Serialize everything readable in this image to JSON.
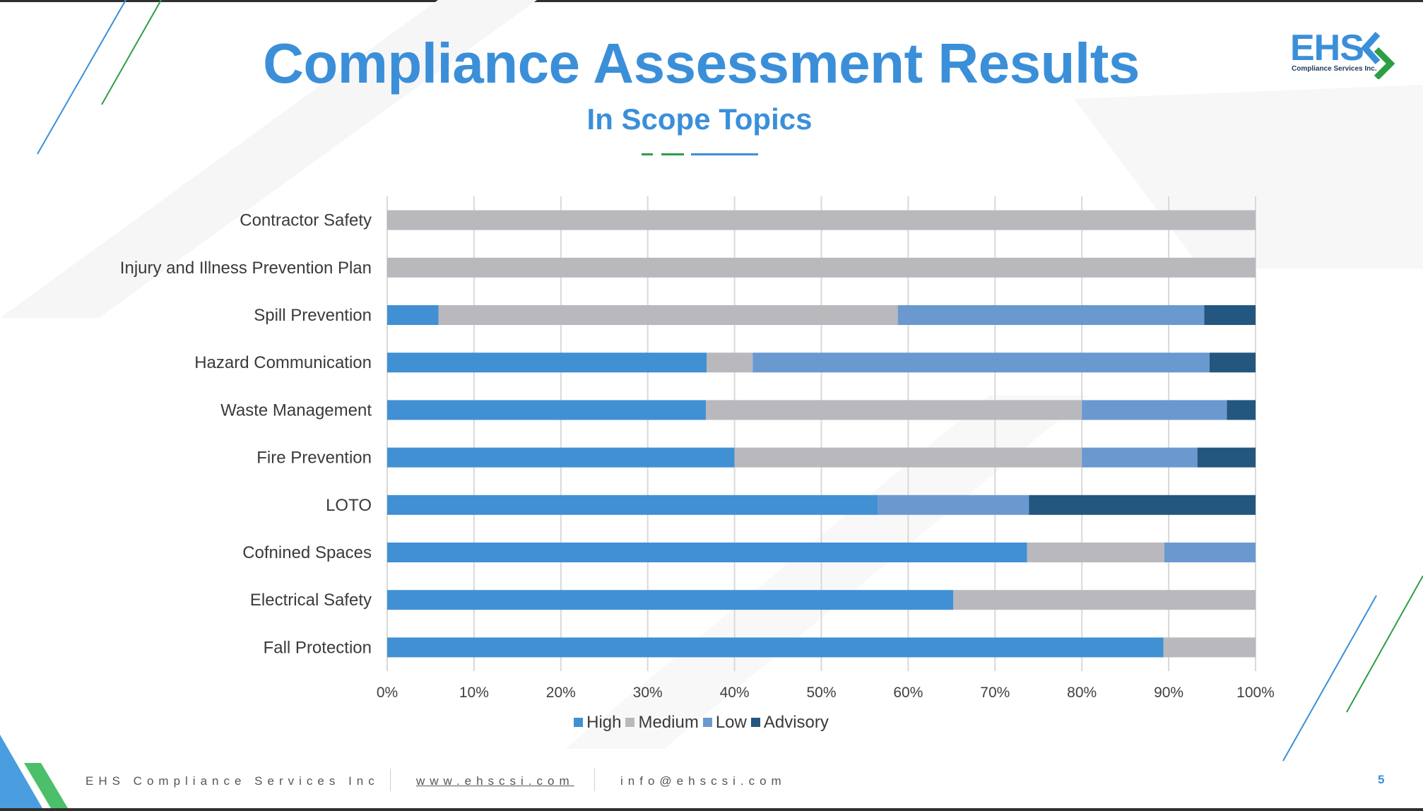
{
  "slide": {
    "title": "Compliance Assessment Results",
    "subtitle": "In Scope Topics",
    "page_number": "5"
  },
  "logo": {
    "text": "EHS",
    "subtext": "Compliance Services Inc."
  },
  "footer": {
    "company": "EHS Compliance Services Inc",
    "website": "www.ehscsi.com",
    "email": "info@ehscsi.com"
  },
  "colors": {
    "accent_blue": "#3b8fd9",
    "accent_green": "#2e9e44"
  },
  "chart_data": {
    "type": "bar",
    "orientation": "horizontal",
    "stacked": "percent",
    "categories": [
      "Contractor Safety",
      "Injury and Illness Prevention Plan",
      "Spill Prevention",
      "Hazard Communication",
      "Waste Management",
      "Fire Prevention",
      "LOTO",
      "Cofnined Spaces",
      "Electrical Safety",
      "Fall Protection"
    ],
    "series": [
      {
        "name": "High",
        "color": "#4190d4",
        "values": [
          0,
          0,
          5.9,
          36.8,
          36.7,
          40.0,
          56.5,
          73.7,
          65.2,
          89.4
        ]
      },
      {
        "name": "Medium",
        "color": "#b8b8bd",
        "values": [
          100,
          100,
          52.9,
          5.3,
          43.3,
          40.0,
          0,
          15.8,
          34.8,
          10.6
        ]
      },
      {
        "name": "Low",
        "color": "#6a99d0",
        "values": [
          0,
          0,
          35.3,
          52.6,
          16.7,
          13.3,
          17.4,
          10.5,
          0,
          0
        ]
      },
      {
        "name": "Advisory",
        "color": "#23577f",
        "values": [
          0,
          0,
          5.9,
          5.3,
          3.3,
          6.7,
          26.1,
          0,
          0,
          0
        ]
      }
    ],
    "x_ticks": [
      "0%",
      "10%",
      "20%",
      "30%",
      "40%",
      "50%",
      "60%",
      "70%",
      "80%",
      "90%",
      "100%"
    ],
    "xlim": [
      0,
      100
    ],
    "grid": true,
    "legend_position": "bottom"
  }
}
